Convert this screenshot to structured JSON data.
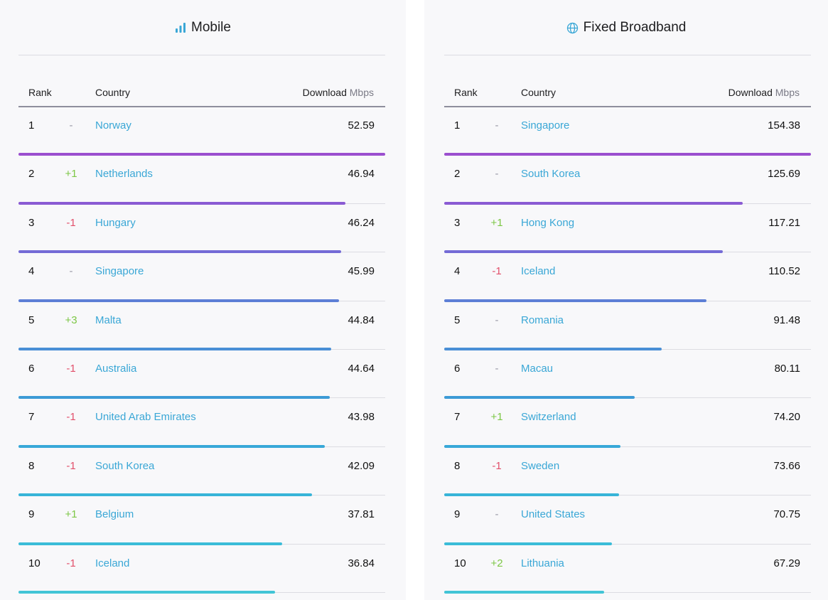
{
  "mobile": {
    "title": "Mobile",
    "icon": "signal-bars-icon",
    "headers": {
      "rank": "Rank",
      "country": "Country",
      "download": "Download",
      "unit": "Mbps"
    },
    "rows": [
      {
        "rank": "1",
        "change": "-",
        "country": "Norway",
        "download": "52.59",
        "fraction": 1.0,
        "color": "#9b4fcf"
      },
      {
        "rank": "2",
        "change": "+1",
        "country": "Netherlands",
        "download": "46.94",
        "fraction": 0.892,
        "color": "#8a5bd3"
      },
      {
        "rank": "3",
        "change": "-1",
        "country": "Hungary",
        "download": "46.24",
        "fraction": 0.879,
        "color": "#746bd6"
      },
      {
        "rank": "4",
        "change": "-",
        "country": "Singapore",
        "download": "45.99",
        "fraction": 0.874,
        "color": "#5d7fd6"
      },
      {
        "rank": "5",
        "change": "+3",
        "country": "Malta",
        "download": "44.84",
        "fraction": 0.853,
        "color": "#4a8fd6"
      },
      {
        "rank": "6",
        "change": "-1",
        "country": "Australia",
        "download": "44.64",
        "fraction": 0.849,
        "color": "#3d9bd6"
      },
      {
        "rank": "7",
        "change": "-1",
        "country": "United Arab Emirates",
        "download": "43.98",
        "fraction": 0.836,
        "color": "#38a8d8"
      },
      {
        "rank": "8",
        "change": "-1",
        "country": "South Korea",
        "download": "42.09",
        "fraction": 0.8,
        "color": "#38b4d8"
      },
      {
        "rank": "9",
        "change": "+1",
        "country": "Belgium",
        "download": "37.81",
        "fraction": 0.719,
        "color": "#3bbcd8"
      },
      {
        "rank": "10",
        "change": "-1",
        "country": "Iceland",
        "download": "36.84",
        "fraction": 0.7,
        "color": "#42c4d6"
      }
    ]
  },
  "fixed": {
    "title": "Fixed Broadband",
    "icon": "globe-icon",
    "headers": {
      "rank": "Rank",
      "country": "Country",
      "download": "Download",
      "unit": "Mbps"
    },
    "rows": [
      {
        "rank": "1",
        "change": "-",
        "country": "Singapore",
        "download": "154.38",
        "fraction": 1.0,
        "color": "#9b4fcf"
      },
      {
        "rank": "2",
        "change": "-",
        "country": "South Korea",
        "download": "125.69",
        "fraction": 0.814,
        "color": "#8a5bd3"
      },
      {
        "rank": "3",
        "change": "+1",
        "country": "Hong Kong",
        "download": "117.21",
        "fraction": 0.759,
        "color": "#746bd6"
      },
      {
        "rank": "4",
        "change": "-1",
        "country": "Iceland",
        "download": "110.52",
        "fraction": 0.716,
        "color": "#5d7fd6"
      },
      {
        "rank": "5",
        "change": "-",
        "country": "Romania",
        "download": "91.48",
        "fraction": 0.593,
        "color": "#4a8fd6"
      },
      {
        "rank": "6",
        "change": "-",
        "country": "Macau",
        "download": "80.11",
        "fraction": 0.519,
        "color": "#3d9bd6"
      },
      {
        "rank": "7",
        "change": "+1",
        "country": "Switzerland",
        "download": "74.20",
        "fraction": 0.481,
        "color": "#38a8d8"
      },
      {
        "rank": "8",
        "change": "-1",
        "country": "Sweden",
        "download": "73.66",
        "fraction": 0.477,
        "color": "#38b4d8"
      },
      {
        "rank": "9",
        "change": "-",
        "country": "United States",
        "download": "70.75",
        "fraction": 0.458,
        "color": "#3bbcd8"
      },
      {
        "rank": "10",
        "change": "+2",
        "country": "Lithuania",
        "download": "67.29",
        "fraction": 0.436,
        "color": "#42c4d6"
      }
    ]
  },
  "colors": {
    "accent": "#3aa7d6",
    "up": "#7dc745",
    "down": "#e2506b",
    "neutral": "#9a9aa6"
  }
}
